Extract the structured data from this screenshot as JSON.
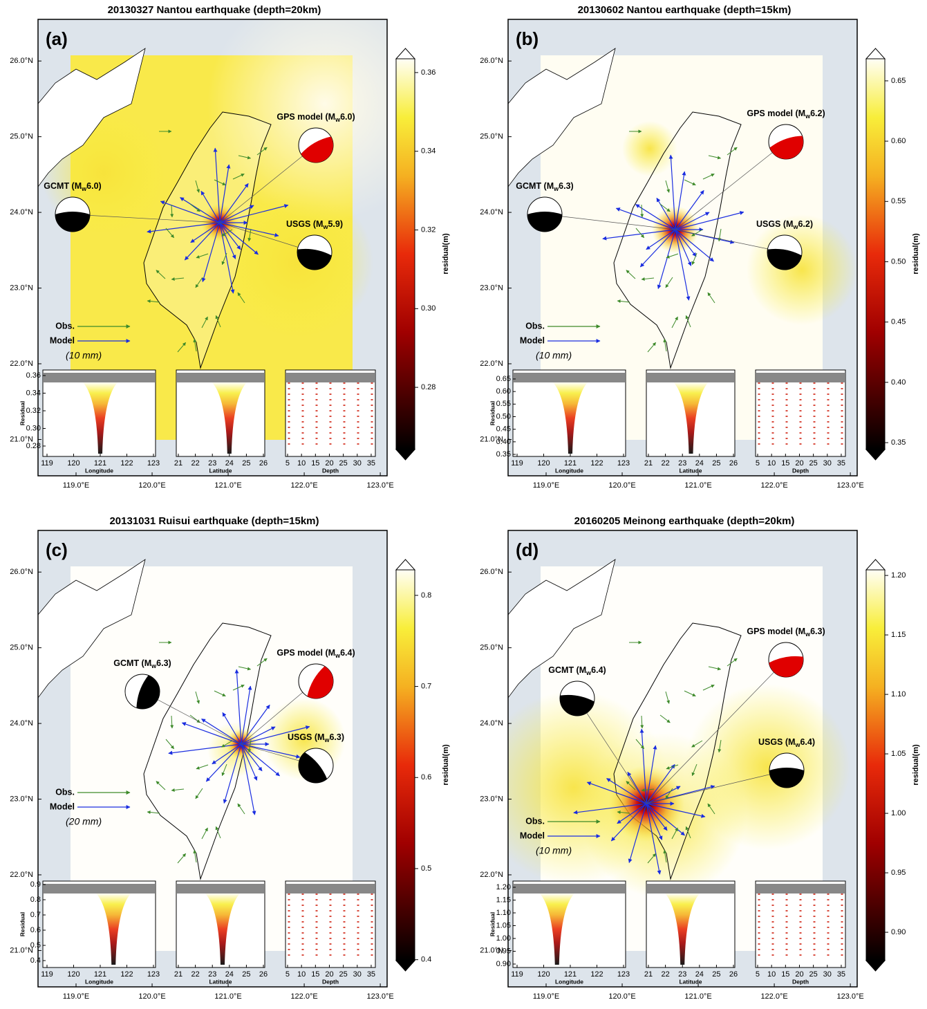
{
  "panels": [
    {
      "title": "20130327 Nantou earthquake (depth=20km)",
      "label": "(a)",
      "xlim": [
        118.5,
        123.09
      ],
      "ylim": [
        20.52,
        26.55
      ],
      "xticks": [
        {
          "value": 119,
          "label": "119.0°E"
        },
        {
          "value": 120,
          "label": "120.0°E"
        },
        {
          "value": 121,
          "label": "121.0°E"
        },
        {
          "value": 122,
          "label": "122.0°E"
        },
        {
          "value": 123,
          "label": "123.0°E"
        }
      ],
      "yticks": [
        {
          "value": 26,
          "label": "26.0°N"
        },
        {
          "value": 25,
          "label": "25.0°N"
        },
        {
          "value": 24,
          "label": "24.0°N"
        },
        {
          "value": 23,
          "label": "23.0°N"
        },
        {
          "value": 22,
          "label": "22.0°N"
        },
        {
          "value": 21,
          "label": "21.0°N"
        }
      ],
      "colorbar": {
        "label": "residual(m)",
        "lim": [
          0.2642,
          0.3635
        ],
        "ticks": [
          0.36,
          0.34,
          0.32,
          {
            "value": 0.3,
            "label": "0.30"
          },
          0.28
        ]
      },
      "mechanisms": [
        {
          "label": "GPS model (M",
          "sub": "w",
          "tail": "6.0)"
        },
        {
          "label": "GCMT (M",
          "sub": "w",
          "tail": "6.0)"
        },
        {
          "label": "USGS (M",
          "sub": "w",
          "tail": "5.9)"
        }
      ],
      "legend": {
        "observed": "Obs.",
        "model": "Model",
        "scale": "(10 mm)"
      },
      "insets": [
        {
          "xlabel": "Longitude",
          "ylabel": "Residual",
          "xlim": [
            118.844,
            123.078
          ],
          "xticks": [
            119,
            120,
            121,
            122,
            123
          ],
          "ylim": [
            0.2682,
            0.3663
          ],
          "yticks": [
            0.36,
            0.34,
            0.32,
            {
              "value": 0.3,
              "label": "0.30"
            },
            0.28
          ]
        },
        {
          "xlabel": "Latitude",
          "xlim": [
            20.878,
            26.08
          ],
          "xticks": [
            21,
            22,
            23,
            24,
            25,
            26
          ],
          "ylim": [
            0.2682,
            0.3663
          ]
        },
        {
          "xlabel": "Depth",
          "xlim": [
            4.256,
            36.5
          ],
          "xticks": [
            5,
            10,
            15,
            20,
            25,
            30,
            35
          ],
          "ylim": [
            0.2682,
            0.3663
          ]
        }
      ]
    },
    {
      "title": "20130602 Nantou earthquake (depth=15km)",
      "label": "(b)",
      "xlim": [
        118.5,
        123.09
      ],
      "ylim": [
        20.52,
        26.55
      ],
      "xticks": [
        {
          "value": 119,
          "label": "119.0°E"
        },
        {
          "value": 120,
          "label": "120.0°E"
        },
        {
          "value": 121,
          "label": "121.0°E"
        },
        {
          "value": 122,
          "label": "122.0°E"
        },
        {
          "value": 123,
          "label": "123.0°E"
        }
      ],
      "yticks": [
        {
          "value": 26,
          "label": "26.0°N"
        },
        {
          "value": 25,
          "label": "25.0°N"
        },
        {
          "value": 24,
          "label": "24.0°N"
        },
        {
          "value": 23,
          "label": "23.0°N"
        },
        {
          "value": 22,
          "label": "22.0°N"
        },
        {
          "value": 21,
          "label": "21.0°N"
        }
      ],
      "colorbar": {
        "label": "residual(m)",
        "lim": [
          0.3443,
          0.6683
        ],
        "ticks": [
          0.65,
          {
            "value": 0.6,
            "label": "0.60"
          },
          0.55,
          {
            "value": 0.5,
            "label": "0.50"
          },
          0.45,
          {
            "value": 0.4,
            "label": "0.40"
          },
          0.35
        ]
      },
      "mechanisms": [
        {
          "label": "GPS model (M",
          "sub": "w",
          "tail": "6.2)"
        },
        {
          "label": "GCMT (M",
          "sub": "w",
          "tail": "6.3)"
        },
        {
          "label": "USGS (M",
          "sub": "w",
          "tail": "6.2)"
        }
      ],
      "legend": {
        "observed": "Obs.",
        "model": "Model",
        "scale": "(10 mm)"
      },
      "insets": [
        {
          "xlabel": "Longitude",
          "ylabel": "Residual",
          "xlim": [
            118.844,
            123.078
          ],
          "xticks": [
            119,
            120,
            121,
            122,
            123
          ],
          "ylim": [
            0.3418,
            0.6857
          ],
          "yticks": [
            0.65,
            {
              "value": 0.6,
              "label": "0.60"
            },
            0.55,
            {
              "value": 0.5,
              "label": "0.50"
            },
            0.45,
            {
              "value": 0.4,
              "label": "0.40"
            },
            0.35
          ]
        },
        {
          "xlabel": "Latitude",
          "xlim": [
            20.878,
            26.08
          ],
          "xticks": [
            21,
            22,
            23,
            24,
            25,
            26
          ],
          "ylim": [
            0.3418,
            0.6857
          ]
        },
        {
          "xlabel": "Depth",
          "xlim": [
            4.256,
            36.5
          ],
          "xticks": [
            5,
            10,
            15,
            20,
            25,
            30,
            35
          ],
          "ylim": [
            0.3418,
            0.6857
          ]
        }
      ]
    },
    {
      "title": "20131031 Ruisui earthquake (depth=15km)",
      "label": "(c)",
      "xlim": [
        118.5,
        123.09
      ],
      "ylim": [
        20.52,
        26.55
      ],
      "xticks": [
        {
          "value": 119,
          "label": "119.0°E"
        },
        {
          "value": 120,
          "label": "120.0°E"
        },
        {
          "value": 121,
          "label": "121.0°E"
        },
        {
          "value": 122,
          "label": "122.0°E"
        },
        {
          "value": 123,
          "label": "123.0°E"
        }
      ],
      "yticks": [
        {
          "value": 26,
          "label": "26.0°N"
        },
        {
          "value": 25,
          "label": "25.0°N"
        },
        {
          "value": 24,
          "label": "24.0°N"
        },
        {
          "value": 23,
          "label": "23.0°N"
        },
        {
          "value": 22,
          "label": "22.0°N"
        },
        {
          "value": 21,
          "label": "21.0°N"
        }
      ],
      "colorbar": {
        "label": "residual(m)",
        "lim": [
          0.399,
          0.828
        ],
        "ticks": [
          0.8,
          0.7,
          0.6,
          0.5,
          0.4
        ]
      },
      "mechanisms": [
        {
          "label": "GPS model (M",
          "sub": "w",
          "tail": "6.4)"
        },
        {
          "label": "GCMT (M",
          "sub": "w",
          "tail": "6.3)"
        },
        {
          "label": "USGS (M",
          "sub": "w",
          "tail": "6.3)"
        }
      ],
      "legend": {
        "observed": "Obs.",
        "model": "Model",
        "scale": "(20 mm)"
      },
      "insets": [
        {
          "xlabel": "Longitude",
          "ylabel": "Residual",
          "xlim": [
            118.844,
            123.078
          ],
          "xticks": [
            119,
            120,
            121,
            122,
            123
          ],
          "ylim": [
            0.3545,
            0.9227
          ],
          "yticks": [
            0.9,
            0.8,
            0.7,
            0.6,
            0.5,
            0.4
          ]
        },
        {
          "xlabel": "Latitude",
          "xlim": [
            20.878,
            26.08
          ],
          "xticks": [
            21,
            22,
            23,
            24,
            25,
            26
          ],
          "ylim": [
            0.3545,
            0.9227
          ]
        },
        {
          "xlabel": "Depth",
          "xlim": [
            4.256,
            36.5
          ],
          "xticks": [
            5,
            10,
            15,
            20,
            25,
            30,
            35
          ],
          "ylim": [
            0.3545,
            0.9227
          ]
        }
      ]
    },
    {
      "title": "20160205 Meinong earthquake (depth=20km)",
      "label": "(d)",
      "xlim": [
        118.5,
        123.09
      ],
      "ylim": [
        20.52,
        26.55
      ],
      "xticks": [
        {
          "value": 119,
          "label": "119.0°E"
        },
        {
          "value": 120,
          "label": "120.0°E"
        },
        {
          "value": 121,
          "label": "121.0°E"
        },
        {
          "value": 122,
          "label": "122.0°E"
        },
        {
          "value": 123,
          "label": "123.0°E"
        }
      ],
      "yticks": [
        {
          "value": 26,
          "label": "26.0°N"
        },
        {
          "value": 25,
          "label": "25.0°N"
        },
        {
          "value": 24,
          "label": "24.0°N"
        },
        {
          "value": 23,
          "label": "23.0°N"
        },
        {
          "value": 22,
          "label": "22.0°N"
        },
        {
          "value": 21,
          "label": "21.0°N"
        }
      ],
      "colorbar": {
        "label": "residual(m)",
        "lim": [
          0.8762,
          1.2047
        ],
        "ticks": [
          {
            "value": 1.2,
            "label": "1.20"
          },
          1.15,
          {
            "value": 1.1,
            "label": "1.10"
          },
          1.05,
          {
            "value": 1.0,
            "label": "1.00"
          },
          0.95,
          {
            "value": 0.9,
            "label": "0.90"
          }
        ]
      },
      "mechanisms": [
        {
          "label": "GPS model (M",
          "sub": "w",
          "tail": "6.3)"
        },
        {
          "label": "GCMT (M",
          "sub": "w",
          "tail": "6.4)"
        },
        {
          "label": "USGS (M",
          "sub": "w",
          "tail": "6.4)"
        }
      ],
      "legend": {
        "observed": "Obs.",
        "model": "Model",
        "scale": "(10 mm)"
      },
      "insets": [
        {
          "xlabel": "Longitude",
          "ylabel": "Residual",
          "xlim": [
            118.844,
            123.078
          ],
          "xticks": [
            119,
            120,
            121,
            122,
            123
          ],
          "ylim": [
            0.8865,
            1.2243
          ],
          "yticks": [
            {
              "value": 1.2,
              "label": "1.20"
            },
            1.15,
            {
              "value": 1.1,
              "label": "1.10"
            },
            1.05,
            {
              "value": 1.0,
              "label": "1.00"
            },
            0.95,
            {
              "value": 0.9,
              "label": "0.90"
            }
          ]
        },
        {
          "xlabel": "Latitude",
          "xlim": [
            20.878,
            26.08
          ],
          "xticks": [
            21,
            22,
            23,
            24,
            25,
            26
          ],
          "ylim": [
            0.8865,
            1.2243
          ]
        },
        {
          "xlabel": "Depth",
          "xlim": [
            4.256,
            36.5
          ],
          "xticks": [
            5,
            10,
            15,
            20,
            25,
            30,
            35
          ],
          "ylim": [
            0.8865,
            1.2243
          ]
        }
      ]
    }
  ]
}
